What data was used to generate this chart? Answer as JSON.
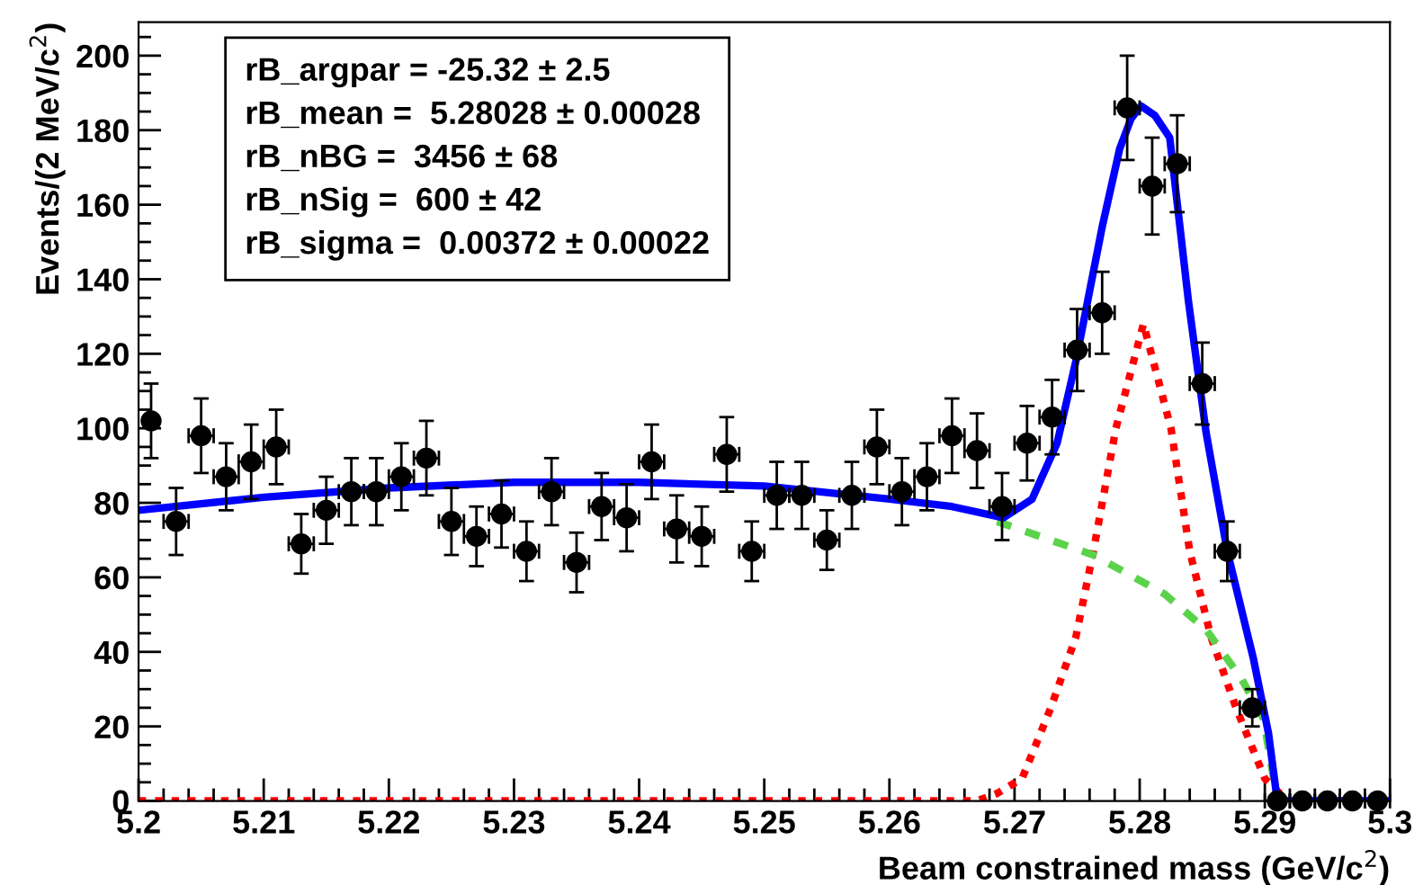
{
  "chart_data": {
    "type": "scatter",
    "xlabel": "Beam constrained mass (GeV/c$^{2}$)",
    "ylabel": "Events/(2 MeV/c$^{2}$)",
    "annotations": [
      "rB_argpar = -25.32 ± 2.5",
      "rB_mean =  5.28028 ± 0.00028",
      "rB_nBG =  3456 ± 68",
      "rB_nSig =  600 ± 42",
      "rB_sigma =  0.00372 ± 0.00022"
    ],
    "xlim": [
      5.2,
      5.3
    ],
    "ylim": [
      0,
      209
    ],
    "xticks": [
      {
        "value": 5.2,
        "label": "5.2"
      },
      5.21,
      5.22,
      5.23,
      5.24,
      5.25,
      5.26,
      5.27,
      5.28,
      5.29,
      {
        "value": 5.3,
        "label": "5.3"
      }
    ],
    "yticks": [
      0,
      20,
      40,
      60,
      80,
      100,
      120,
      140,
      160,
      180,
      200
    ],
    "grid": false,
    "series": [
      {
        "type": "line",
        "color": "#ff0000",
        "line_style": "dotted",
        "x": [
          5.2,
          5.267,
          5.2686,
          5.2706,
          5.2729,
          5.2749,
          5.2763,
          5.2781,
          5.2803,
          5.2825,
          5.284,
          5.2857,
          5.2877,
          5.29,
          5.2915
        ],
        "values": [
          0,
          0,
          2,
          6,
          25,
          44,
          67,
          100,
          128,
          100,
          67,
          44,
          25,
          6,
          1
        ]
      },
      {
        "type": "line",
        "color": "#5ad34a",
        "line_style": "dashed",
        "x": [
          5.2686,
          5.2763,
          5.282,
          5.2853,
          5.2881,
          5.2899,
          5.2907,
          5.291
        ],
        "values": [
          75,
          66,
          55.5,
          46,
          33,
          22,
          6,
          0
        ]
      },
      {
        "type": "line",
        "color": "#0000ff",
        "line_style": "solid",
        "x": [
          5.2,
          5.21,
          5.22,
          5.23,
          5.24,
          5.25,
          5.26,
          5.265,
          5.2691,
          5.2714,
          5.2734,
          5.2749,
          5.277,
          5.2784,
          5.2793,
          5.2801,
          5.2812,
          5.2824,
          5.2839,
          5.2853,
          5.287,
          5.2891,
          5.2903,
          5.291,
          5.3
        ],
        "values": [
          78,
          81.5,
          84,
          85.5,
          85.5,
          84.5,
          81,
          79,
          76,
          81,
          96,
          118,
          154,
          175,
          183,
          186.5,
          184,
          178,
          134,
          99,
          67,
          38,
          18,
          0,
          0
        ]
      },
      {
        "color": "#000000",
        "marker": "circle",
        "x": [
          5.201,
          5.203,
          5.205,
          5.207,
          5.209,
          5.211,
          5.213,
          5.215,
          5.217,
          5.219,
          5.221,
          5.223,
          5.225,
          5.227,
          5.229,
          5.231,
          5.233,
          5.235,
          5.237,
          5.239,
          5.241,
          5.243,
          5.245,
          5.247,
          5.249,
          5.251,
          5.253,
          5.255,
          5.257,
          5.259,
          5.261,
          5.263,
          5.265,
          5.267,
          5.269,
          5.271,
          5.273,
          5.275,
          5.277,
          5.279,
          5.281,
          5.283,
          5.285,
          5.287,
          5.289,
          5.291,
          5.293,
          5.295,
          5.297,
          5.299
        ],
        "values": [
          102,
          75,
          98,
          87,
          91,
          95,
          69,
          78,
          83,
          83,
          87,
          92,
          75,
          71,
          77,
          67,
          83,
          64,
          79,
          76,
          91,
          73,
          71,
          93,
          67,
          82,
          82,
          70,
          82,
          95,
          83,
          87,
          98,
          94,
          79,
          96,
          103,
          121,
          131,
          186,
          165,
          171,
          112,
          67,
          25,
          0,
          0,
          0,
          0,
          0
        ],
        "errors": [
          10,
          9,
          10,
          9,
          10,
          10,
          8,
          9,
          9,
          9,
          9,
          10,
          9,
          8,
          9,
          8,
          9,
          8,
          9,
          9,
          10,
          9,
          8,
          10,
          8,
          9,
          9,
          8,
          9,
          10,
          9,
          9,
          10,
          10,
          9,
          10,
          10,
          11,
          11,
          14,
          13,
          13,
          11,
          8,
          5,
          null,
          null,
          null,
          null,
          null
        ],
        "xerrors": [
          null,
          0.001,
          0.001,
          0.001,
          0.001,
          0.001,
          0.001,
          0.001,
          0.001,
          0.001,
          0.001,
          0.001,
          0.001,
          0.001,
          0.001,
          0.001,
          0.001,
          0.001,
          0.001,
          0.001,
          0.001,
          0.001,
          0.001,
          0.001,
          0.001,
          0.001,
          0.001,
          0.001,
          0.001,
          0.001,
          0.001,
          0.001,
          0.001,
          0.001,
          0.001,
          0.001,
          0.001,
          0.001,
          0.001,
          0.001,
          0.001,
          0.001,
          0.001,
          0.001,
          0.001,
          0.001,
          0.001,
          0.001,
          0.001,
          0.001
        ]
      }
    ]
  }
}
